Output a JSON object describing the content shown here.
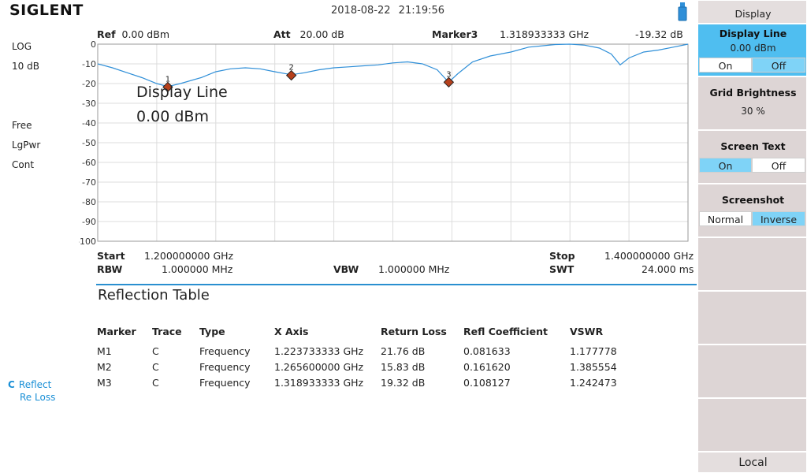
{
  "brand": "SIGLENT",
  "datetime": "2018-08-22  21:19:56",
  "left_panel": {
    "scale_type": "LOG",
    "scale_div": "10 dB",
    "trigger": "Free",
    "avg_type": "LgPwr",
    "sweep": "Cont",
    "trace_letter": "C",
    "trace_mode": "Reflect",
    "trace_meas": "Re Loss"
  },
  "header": {
    "ref_label": "Ref",
    "ref_value": "0.00 dBm",
    "att_label": "Att",
    "att_value": "20.00 dB",
    "marker_label": "Marker3",
    "marker_freq": "1.318933333 GHz",
    "marker_level": "-19.32 dB"
  },
  "overlay": {
    "line1": "Display Line",
    "line2": "0.00 dBm"
  },
  "chart_data": {
    "type": "line",
    "xlim": [
      1.2,
      1.4
    ],
    "ylim": [
      -100,
      0
    ],
    "y_ticks": [
      "0",
      "-10",
      "-20",
      "-30",
      "-40",
      "-50",
      "-60",
      "-70",
      "-80",
      "-90",
      "-100"
    ],
    "grid": true,
    "trace_color": "#2f8fd8",
    "x": [
      1.2,
      1.205,
      1.21,
      1.215,
      1.22,
      1.2237,
      1.228,
      1.235,
      1.24,
      1.245,
      1.25,
      1.255,
      1.26,
      1.2656,
      1.27,
      1.275,
      1.28,
      1.285,
      1.29,
      1.295,
      1.3,
      1.305,
      1.31,
      1.315,
      1.3189,
      1.322,
      1.327,
      1.333,
      1.34,
      1.346,
      1.355,
      1.36,
      1.365,
      1.37,
      1.374,
      1.377,
      1.38,
      1.385,
      1.39,
      1.395,
      1.4
    ],
    "y": [
      -10,
      -12,
      -14.5,
      -17,
      -20,
      -21.5,
      -20,
      -17,
      -14,
      -12.5,
      -12,
      -12.5,
      -14,
      -15.5,
      -14.5,
      -13,
      -12,
      -11.5,
      -11,
      -10.5,
      -9.5,
      -9,
      -10,
      -13,
      -19.3,
      -15,
      -9,
      -6,
      -4,
      -1.5,
      -0.2,
      0,
      -0.5,
      -2,
      -5,
      -10.5,
      -7,
      -4,
      -3,
      -1.5,
      0
    ],
    "markers": [
      {
        "label": "1",
        "x": 1.223733333,
        "y": -21.76
      },
      {
        "label": "2",
        "x": 1.2656,
        "y": -15.83
      },
      {
        "label": "3",
        "x": 1.318933333,
        "y": -19.32
      }
    ]
  },
  "footer": {
    "start_label": "Start",
    "start_value": "1.200000000 GHz",
    "rbw_label": "RBW",
    "rbw_value": "1.000000 MHz",
    "vbw_label": "VBW",
    "vbw_value": "1.000000 MHz",
    "stop_label": "Stop",
    "stop_value": "1.400000000 GHz",
    "swt_label": "SWT",
    "swt_value": "24.000 ms"
  },
  "table": {
    "title": "Reflection Table",
    "headers": [
      "Marker",
      "Trace",
      "Type",
      "X Axis",
      "Return Loss",
      "Refl Coefficient",
      "VSWR"
    ],
    "rows": [
      [
        "M1",
        "C",
        "Frequency",
        "1.223733333 GHz",
        "21.76 dB",
        "0.081633",
        "1.177778"
      ],
      [
        "M2",
        "C",
        "Frequency",
        "1.265600000 GHz",
        "15.83 dB",
        "0.161620",
        "1.385554"
      ],
      [
        "M3",
        "C",
        "Frequency",
        "1.318933333 GHz",
        "19.32 dB",
        "0.108127",
        "1.242473"
      ]
    ]
  },
  "menu": {
    "title": "Display",
    "display_line": "Display Line",
    "display_line_value": "0.00 dBm",
    "on": "On",
    "off": "Off",
    "grid_brightness": "Grid Brightness",
    "grid_brightness_value": "30 %",
    "screen_text": "Screen Text",
    "screenshot": "Screenshot",
    "normal": "Normal",
    "inverse": "Inverse",
    "local": "Local"
  }
}
